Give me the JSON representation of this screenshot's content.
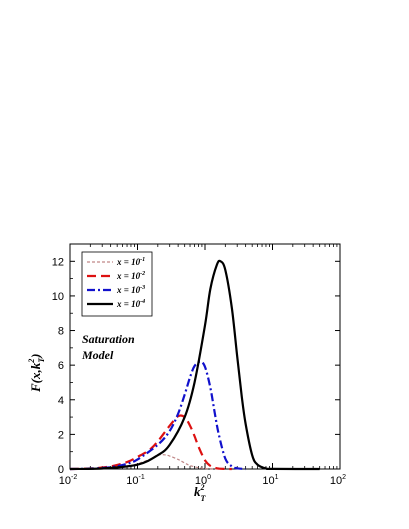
{
  "chart_data": {
    "type": "line",
    "x_scale": "log",
    "xlim": [
      0.01,
      100
    ],
    "ylim": [
      0,
      13
    ],
    "y_ticks": [
      0,
      2,
      4,
      6,
      8,
      10,
      12
    ],
    "x_ticks": [
      {
        "base": "10",
        "exp": "-2",
        "value": 0.01
      },
      {
        "base": "10",
        "exp": "-1",
        "value": 0.1
      },
      {
        "base": "10",
        "exp": "0",
        "value": 1
      },
      {
        "base": "10",
        "exp": "1",
        "value": 10
      },
      {
        "base": "10",
        "exp": "2",
        "value": 100
      }
    ],
    "xlabel": {
      "main": "k",
      "sup": "2",
      "sub": "T"
    },
    "ylabel": {
      "main": "F(x,k",
      "sup": "2",
      "sub": "T",
      "close": ")"
    },
    "annotation": [
      "Saturation",
      "Model"
    ],
    "legend_position": "top-left",
    "grid": false,
    "series": [
      {
        "name": "x = 10",
        "exp": "-1",
        "color": "#c08888",
        "dash": "3,2",
        "width": 1.2,
        "x": [
          0.01,
          0.02,
          0.04,
          0.07,
          0.1,
          0.15,
          0.2,
          0.25,
          0.3,
          0.4,
          0.5,
          0.6,
          0.8,
          1.0,
          1.3,
          1.7
        ],
        "y": [
          0,
          0.01,
          0.05,
          0.15,
          0.3,
          0.55,
          0.8,
          0.82,
          0.75,
          0.55,
          0.35,
          0.2,
          0.08,
          0.03,
          0.01,
          0
        ]
      },
      {
        "name": "x = 10",
        "exp": "-2",
        "color": "#dd1111",
        "dash": "9,5",
        "width": 2.2,
        "x": [
          0.01,
          0.02,
          0.04,
          0.07,
          0.1,
          0.15,
          0.2,
          0.3,
          0.4,
          0.5,
          0.6,
          0.7,
          0.8,
          1.0,
          1.2,
          1.5,
          2.0,
          2.5
        ],
        "y": [
          0,
          0.03,
          0.15,
          0.4,
          0.7,
          1.1,
          1.6,
          2.5,
          3.05,
          3.0,
          2.5,
          1.9,
          1.3,
          0.5,
          0.18,
          0.04,
          0.005,
          0
        ]
      },
      {
        "name": "x = 10",
        "exp": "-3",
        "color": "#1111cc",
        "dash": "8,3,2,3",
        "width": 2.2,
        "x": [
          0.01,
          0.02,
          0.04,
          0.07,
          0.1,
          0.2,
          0.3,
          0.4,
          0.5,
          0.6,
          0.7,
          0.85,
          1.0,
          1.2,
          1.4,
          1.6,
          2.0,
          2.5,
          3.0,
          4.0
        ],
        "y": [
          0,
          0.02,
          0.1,
          0.3,
          0.55,
          1.4,
          2.2,
          3.2,
          4.3,
          5.3,
          5.95,
          6.2,
          5.9,
          4.7,
          3.2,
          2.0,
          0.6,
          0.15,
          0.04,
          0
        ]
      },
      {
        "name": "x = 10",
        "exp": "-4",
        "color": "#000000",
        "dash": "",
        "width": 2.2,
        "x": [
          0.01,
          0.03,
          0.1,
          0.2,
          0.3,
          0.5,
          0.7,
          1.0,
          1.2,
          1.5,
          1.7,
          2.0,
          2.5,
          3.0,
          3.5,
          4.0,
          5.0,
          6.0,
          8.0,
          10,
          50
        ],
        "y": [
          0,
          0.03,
          0.25,
          0.8,
          1.4,
          3.0,
          5.0,
          8.3,
          10.4,
          11.8,
          12.0,
          11.5,
          9.3,
          6.5,
          4.2,
          2.6,
          0.8,
          0.25,
          0.03,
          0.005,
          0
        ]
      }
    ]
  }
}
